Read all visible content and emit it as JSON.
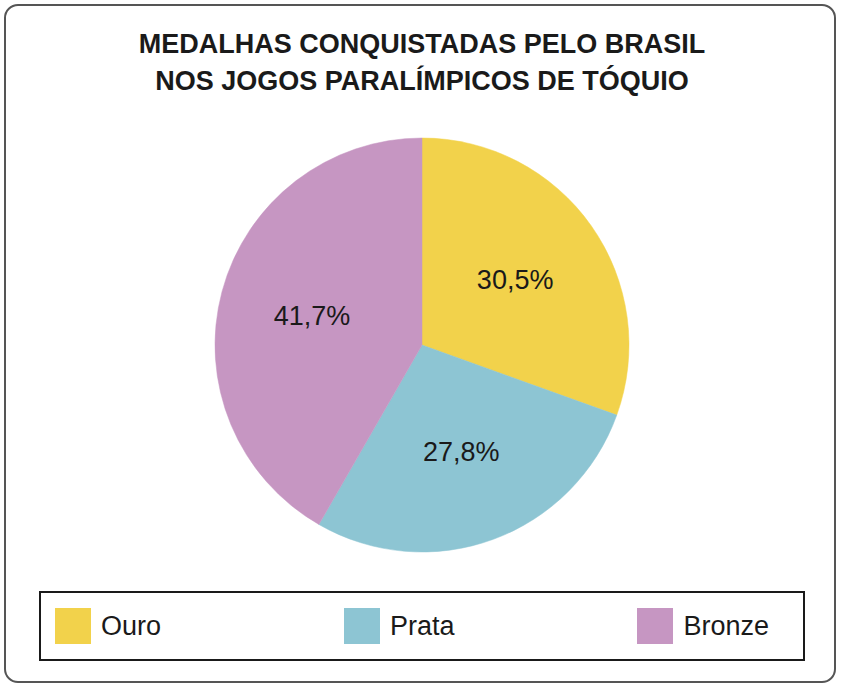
{
  "chart_data": {
    "type": "pie",
    "title": "MEDALHAS CONQUISTADAS PELO BRASIL\nNOS JOGOS PARALÍMPICOS DE TÓQUIO",
    "categories": [
      "Ouro",
      "Prata",
      "Bronze"
    ],
    "values": [
      30.5,
      27.8,
      41.7
    ],
    "value_labels": [
      "30,5%",
      "27,8%",
      "41,7%"
    ],
    "colors": [
      "#f2d24b",
      "#8dc5d3",
      "#c696c2"
    ],
    "data_labels": true,
    "legend": "bottom"
  }
}
